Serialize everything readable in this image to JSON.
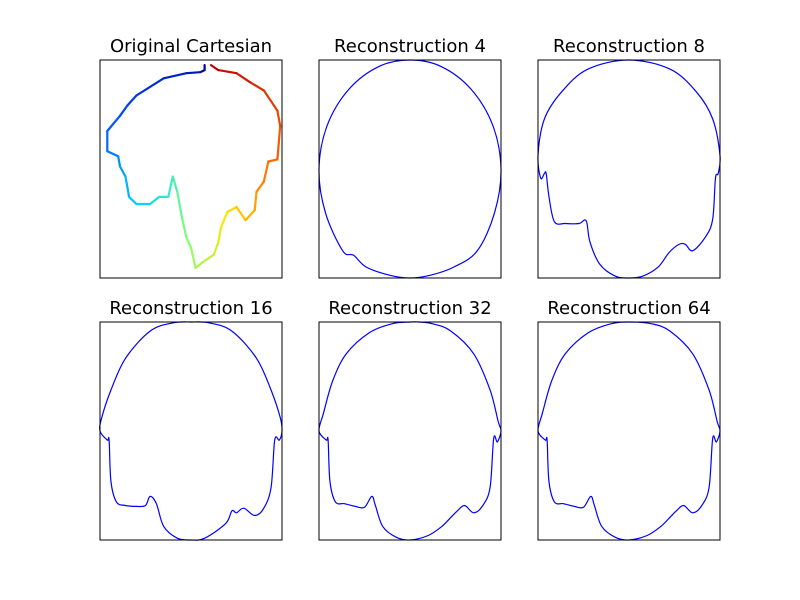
{
  "chart_data": [
    {
      "type": "line",
      "title": "Original Cartesian",
      "xlabel": "",
      "ylabel": "",
      "colormap": "jet",
      "colors": [
        "#00008f",
        "#0050ff",
        "#00d4ff",
        "#7dff7a",
        "#ffe600",
        "#ff6400",
        "#bf0000"
      ],
      "grid": false,
      "ticks": false,
      "xlim": [
        -1.0,
        1.0
      ],
      "ylim": [
        -1.15,
        1.0
      ],
      "x": [
        0.15,
        0.15,
        0.1,
        -0.05,
        -0.3,
        -0.6,
        -0.7,
        -0.78,
        -0.92,
        -0.92,
        -0.8,
        -0.78,
        -0.72,
        -0.68,
        -0.6,
        -0.45,
        -0.35,
        -0.25,
        -0.2,
        -0.15,
        -0.1,
        -0.05,
        0.0,
        0.05,
        0.15,
        0.25,
        0.3,
        0.33,
        0.4,
        0.5,
        0.6,
        0.7,
        0.72,
        0.8,
        0.85,
        0.95,
        0.98,
        0.95,
        0.8,
        0.65,
        0.5,
        0.3,
        0.22
      ],
      "y": [
        0.95,
        0.9,
        0.88,
        0.87,
        0.82,
        0.65,
        0.55,
        0.45,
        0.3,
        0.1,
        0.05,
        -0.05,
        -0.15,
        -0.35,
        -0.42,
        -0.42,
        -0.35,
        -0.35,
        -0.15,
        -0.3,
        -0.55,
        -0.75,
        -0.85,
        -1.05,
        -0.98,
        -0.92,
        -0.8,
        -0.65,
        -0.5,
        -0.45,
        -0.58,
        -0.48,
        -0.3,
        -0.2,
        0.0,
        0.02,
        0.35,
        0.5,
        0.7,
        0.78,
        0.87,
        0.9,
        0.95
      ]
    },
    {
      "type": "line",
      "title": "Reconstruction 4",
      "color": "#0000ff",
      "grid": false,
      "ticks": false,
      "xlim": [
        -1.0,
        1.0
      ],
      "ylim": [
        -1.2,
        1.2
      ],
      "x": [
        0.0,
        0.34,
        0.67,
        0.91,
        1.0,
        0.93,
        0.74,
        0.48,
        0.22,
        0.0,
        -0.22,
        -0.48,
        -0.62,
        -0.74,
        -0.93,
        -1.0,
        -0.91,
        -0.67,
        -0.34
      ],
      "y": [
        1.2,
        1.13,
        0.88,
        0.48,
        0.0,
        -0.48,
        -0.9,
        -1.08,
        -1.17,
        -1.2,
        -1.17,
        -1.08,
        -0.95,
        -0.9,
        -0.48,
        0.0,
        0.48,
        0.88,
        1.13
      ]
    },
    {
      "type": "line",
      "title": "Reconstruction 8",
      "color": "#0000ff",
      "grid": false,
      "ticks": false,
      "xlim": [
        -1.0,
        1.0
      ],
      "ylim": [
        -1.2,
        1.2
      ],
      "x": [
        0.0,
        0.45,
        0.74,
        0.92,
        1.0,
        0.98,
        0.95,
        0.92,
        0.84,
        0.7,
        0.62,
        0.55,
        0.44,
        0.32,
        0.15,
        0.0,
        -0.15,
        -0.32,
        -0.43,
        -0.47,
        -0.55,
        -0.7,
        -0.82,
        -0.88,
        -0.91,
        -0.93,
        -0.97,
        -1.0,
        -0.93,
        -0.74,
        -0.45
      ],
      "y": [
        1.2,
        1.1,
        0.85,
        0.55,
        0.15,
        -0.05,
        -0.1,
        -0.55,
        -0.75,
        -0.9,
        -0.83,
        -0.83,
        -0.92,
        -1.08,
        -1.18,
        -1.2,
        -1.18,
        -1.05,
        -0.8,
        -0.57,
        -0.6,
        -0.6,
        -0.58,
        -0.3,
        -0.05,
        -0.05,
        -0.1,
        0.15,
        0.55,
        0.85,
        1.1
      ]
    },
    {
      "type": "line",
      "title": "Reconstruction 16",
      "color": "#0000ff",
      "grid": false,
      "ticks": false,
      "xlim": [
        -1.0,
        1.0
      ],
      "ylim": [
        -1.2,
        1.2
      ],
      "x": [
        0.0,
        0.2,
        0.45,
        0.72,
        0.88,
        0.98,
        1.0,
        0.97,
        0.92,
        0.88,
        0.8,
        0.7,
        0.58,
        0.5,
        0.45,
        0.38,
        0.15,
        0.0,
        -0.15,
        -0.3,
        -0.38,
        -0.45,
        -0.5,
        -0.6,
        -0.72,
        -0.82,
        -0.88,
        -0.9,
        -0.92,
        -1.0,
        -0.98,
        -0.88,
        -0.72,
        -0.45,
        -0.2
      ],
      "y": [
        1.2,
        1.19,
        1.1,
        0.8,
        0.45,
        0.15,
        0.0,
        -0.1,
        -0.1,
        -0.62,
        -0.85,
        -0.93,
        -0.85,
        -0.9,
        -0.88,
        -1.02,
        -1.18,
        -1.2,
        -1.18,
        -1.05,
        -0.8,
        -0.72,
        -0.82,
        -0.83,
        -0.82,
        -0.78,
        -0.55,
        -0.1,
        -0.1,
        0.0,
        0.15,
        0.45,
        0.8,
        1.1,
        1.19
      ]
    },
    {
      "type": "line",
      "title": "Reconstruction 32",
      "color": "#0000ff",
      "grid": false,
      "ticks": false,
      "xlim": [
        -1.0,
        1.0
      ],
      "ylim": [
        -1.2,
        1.2
      ],
      "x": [
        0.0,
        0.1,
        0.25,
        0.45,
        0.7,
        0.88,
        0.97,
        1.0,
        0.96,
        0.92,
        0.88,
        0.8,
        0.7,
        0.6,
        0.52,
        0.45,
        0.35,
        0.2,
        0.0,
        -0.15,
        -0.3,
        -0.38,
        -0.42,
        -0.5,
        -0.6,
        -0.72,
        -0.82,
        -0.88,
        -0.9,
        -0.92,
        -1.0,
        -0.95,
        -0.85,
        -0.7,
        -0.45,
        -0.2
      ],
      "y": [
        1.2,
        1.2,
        1.18,
        1.1,
        0.85,
        0.45,
        0.1,
        0.0,
        -0.12,
        -0.08,
        -0.62,
        -0.82,
        -0.9,
        -0.82,
        -0.88,
        -0.95,
        -1.05,
        -1.15,
        -1.2,
        -1.17,
        -1.05,
        -0.82,
        -0.72,
        -0.84,
        -0.83,
        -0.8,
        -0.78,
        -0.55,
        -0.1,
        -0.1,
        0.0,
        0.2,
        0.55,
        0.85,
        1.08,
        1.18
      ]
    },
    {
      "type": "line",
      "title": "Reconstruction 64",
      "color": "#0000ff",
      "grid": false,
      "ticks": false,
      "xlim": [
        -1.0,
        1.0
      ],
      "ylim": [
        -1.2,
        1.2
      ],
      "x": [
        0.0,
        0.25,
        0.45,
        0.7,
        0.88,
        0.97,
        1.0,
        0.96,
        0.92,
        0.88,
        0.8,
        0.7,
        0.6,
        0.52,
        0.45,
        0.35,
        0.2,
        0.0,
        -0.15,
        -0.3,
        -0.38,
        -0.42,
        -0.5,
        -0.6,
        -0.72,
        -0.82,
        -0.88,
        -0.9,
        -0.92,
        -1.0,
        -0.95,
        -0.85,
        -0.7,
        -0.45,
        -0.2
      ],
      "y": [
        1.2,
        1.18,
        1.1,
        0.85,
        0.45,
        0.1,
        0.0,
        -0.12,
        -0.08,
        -0.62,
        -0.82,
        -0.9,
        -0.82,
        -0.88,
        -0.95,
        -1.05,
        -1.15,
        -1.2,
        -1.17,
        -1.05,
        -0.82,
        -0.72,
        -0.84,
        -0.83,
        -0.8,
        -0.78,
        -0.55,
        -0.1,
        -0.1,
        0.0,
        0.2,
        0.55,
        0.85,
        1.08,
        1.18
      ]
    }
  ]
}
